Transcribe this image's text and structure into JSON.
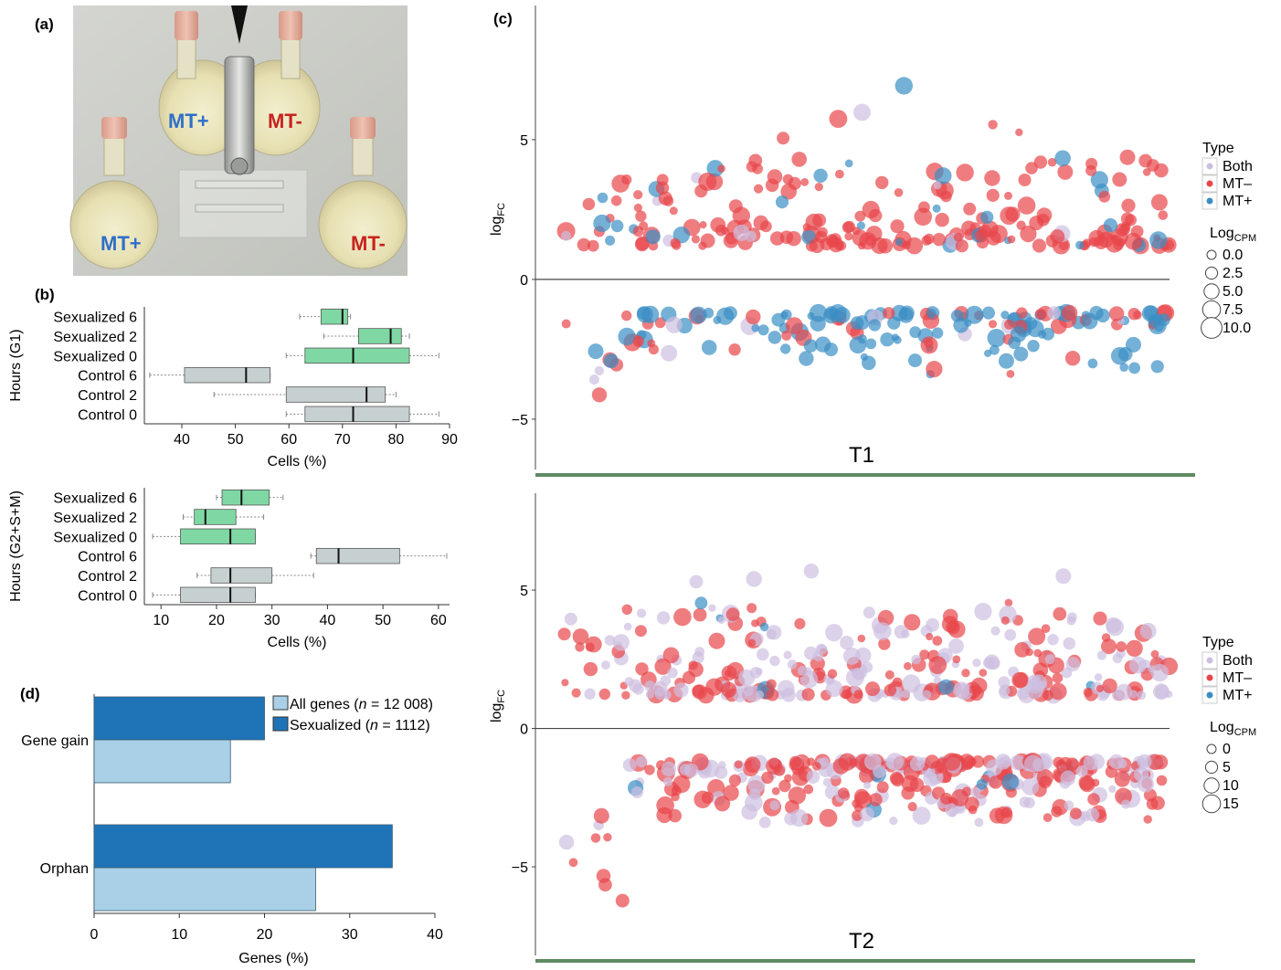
{
  "panels": {
    "a": {
      "label": "(a)",
      "flask_labels": {
        "top_left": "MT+",
        "top_right": "MT-",
        "bottom_left": "MT+",
        "bottom_right": "MT-"
      },
      "colors": {
        "mt_plus": "#2f6fc9",
        "mt_minus": "#c8221e"
      }
    },
    "b": {
      "label": "(b)"
    },
    "c": {
      "label": "(c)"
    },
    "d": {
      "label": "(d)"
    }
  },
  "chart_data": [
    {
      "id": "b_top",
      "type": "boxplot",
      "ylabel": "Hours (G1)",
      "xlabel": "Cells (%)",
      "xlim": [
        33,
        90
      ],
      "xticks": [
        40,
        50,
        60,
        70,
        80,
        90
      ],
      "categories": [
        "Sexualized 6",
        "Sexualized 2",
        "Sexualized 0",
        "Control 6",
        "Control 2",
        "Control 0"
      ],
      "boxes": [
        {
          "label": "Sexualized 6",
          "group": "Sexualized",
          "whisker_low": 62,
          "q1": 66,
          "median": 70,
          "q3": 71,
          "whisker_high": 71.5
        },
        {
          "label": "Sexualized 2",
          "group": "Sexualized",
          "whisker_low": 66.5,
          "q1": 73,
          "median": 79,
          "q3": 81,
          "whisker_high": 82.5
        },
        {
          "label": "Sexualized 0",
          "group": "Sexualized",
          "whisker_low": 59.5,
          "q1": 63,
          "median": 72,
          "q3": 82.5,
          "whisker_high": 88
        },
        {
          "label": "Control 6",
          "group": "Control",
          "whisker_low": 34,
          "q1": 40.5,
          "median": 52,
          "q3": 56.5,
          "whisker_high": 56.5
        },
        {
          "label": "Control 2",
          "group": "Control",
          "whisker_low": 46,
          "q1": 59.5,
          "median": 74.5,
          "q3": 78,
          "whisker_high": 80
        },
        {
          "label": "Control 0",
          "group": "Control",
          "whisker_low": 59.5,
          "q1": 63,
          "median": 72,
          "q3": 82.5,
          "whisker_high": 88
        }
      ],
      "colors": {
        "Sexualized": "#7fd8a4",
        "Control": "#c7d0d0"
      }
    },
    {
      "id": "b_bottom",
      "type": "boxplot",
      "ylabel": "Hours (G2+S+M)",
      "xlabel": "Cells (%)",
      "xlim": [
        7,
        62
      ],
      "xticks": [
        10,
        20,
        30,
        40,
        50,
        60
      ],
      "categories": [
        "Sexualized 6",
        "Sexualized 2",
        "Sexualized 0",
        "Control 6",
        "Control 2",
        "Control 0"
      ],
      "boxes": [
        {
          "label": "Sexualized 6",
          "group": "Sexualized",
          "whisker_low": 20,
          "q1": 21,
          "median": 24.5,
          "q3": 29.5,
          "whisker_high": 32
        },
        {
          "label": "Sexualized 2",
          "group": "Sexualized",
          "whisker_low": 14,
          "q1": 16,
          "median": 18,
          "q3": 23.5,
          "whisker_high": 28.5
        },
        {
          "label": "Sexualized 0",
          "group": "Sexualized",
          "whisker_low": 8.5,
          "q1": 13.5,
          "median": 22.5,
          "q3": 27,
          "whisker_high": 27
        },
        {
          "label": "Control 6",
          "group": "Control",
          "whisker_low": 37,
          "q1": 38,
          "median": 42,
          "q3": 53,
          "whisker_high": 61.5
        },
        {
          "label": "Control 2",
          "group": "Control",
          "whisker_low": 16.5,
          "q1": 19,
          "median": 22.5,
          "q3": 30,
          "whisker_high": 37.5
        },
        {
          "label": "Control 0",
          "group": "Control",
          "whisker_low": 8.5,
          "q1": 13.5,
          "median": 22.5,
          "q3": 27,
          "whisker_high": 27
        }
      ],
      "colors": {
        "Sexualized": "#7fd8a4",
        "Control": "#c7d0d0"
      }
    },
    {
      "id": "c_T1",
      "type": "scatter",
      "title": "T1",
      "ylabel": "log",
      "ylabel_sub": "FC",
      "ylim": [
        -6.8,
        9.8
      ],
      "yticks": [
        -5,
        0,
        5
      ],
      "legend": {
        "type_title": "Type",
        "types": [
          "Both",
          "MT–",
          "MT+"
        ],
        "size_title": "Log",
        "size_title_sub": "CPM",
        "sizes": [
          "0.0",
          "2.5",
          "5.0",
          "7.5",
          "10.0"
        ]
      },
      "colors": {
        "Both": "#cdbfe0",
        "MT–": "#e8464a",
        "MT+": "#3a8fc4"
      },
      "n_up": 230,
      "n_down": 170,
      "mix_up": [
        0.05,
        0.85,
        0.1
      ],
      "mix_down": [
        0.06,
        0.34,
        0.6
      ]
    },
    {
      "id": "c_T2",
      "type": "scatter",
      "title": "T2",
      "ylabel": "log",
      "ylabel_sub": "FC",
      "ylim": [
        -8.2,
        8.5
      ],
      "yticks": [
        -5,
        0,
        5
      ],
      "legend": {
        "type_title": "Type",
        "types": [
          "Both",
          "MT–",
          "MT+"
        ],
        "size_title": "Log",
        "size_title_sub": "CPM",
        "sizes": [
          "0",
          "5",
          "10",
          "15"
        ]
      },
      "colors": {
        "Both": "#cdbfe0",
        "MT–": "#e8464a",
        "MT+": "#3a8fc4"
      },
      "n_up": 300,
      "n_down": 330,
      "mix_up": [
        0.55,
        0.43,
        0.02
      ],
      "mix_down": [
        0.42,
        0.56,
        0.02
      ]
    },
    {
      "id": "d",
      "type": "bar",
      "orientation": "horizontal",
      "xlabel": "Genes (%)",
      "xlim": [
        0,
        40
      ],
      "xticks": [
        0,
        10,
        20,
        30,
        40
      ],
      "categories": [
        "Gene gain",
        "Orphan"
      ],
      "series": [
        {
          "name": "Sexualized",
          "n": "1112",
          "values": [
            20,
            35
          ],
          "color": "#1f74b8"
        },
        {
          "name": "All genes",
          "n": "12 008",
          "values": [
            16,
            26
          ],
          "color": "#a9d0e6"
        }
      ]
    }
  ]
}
